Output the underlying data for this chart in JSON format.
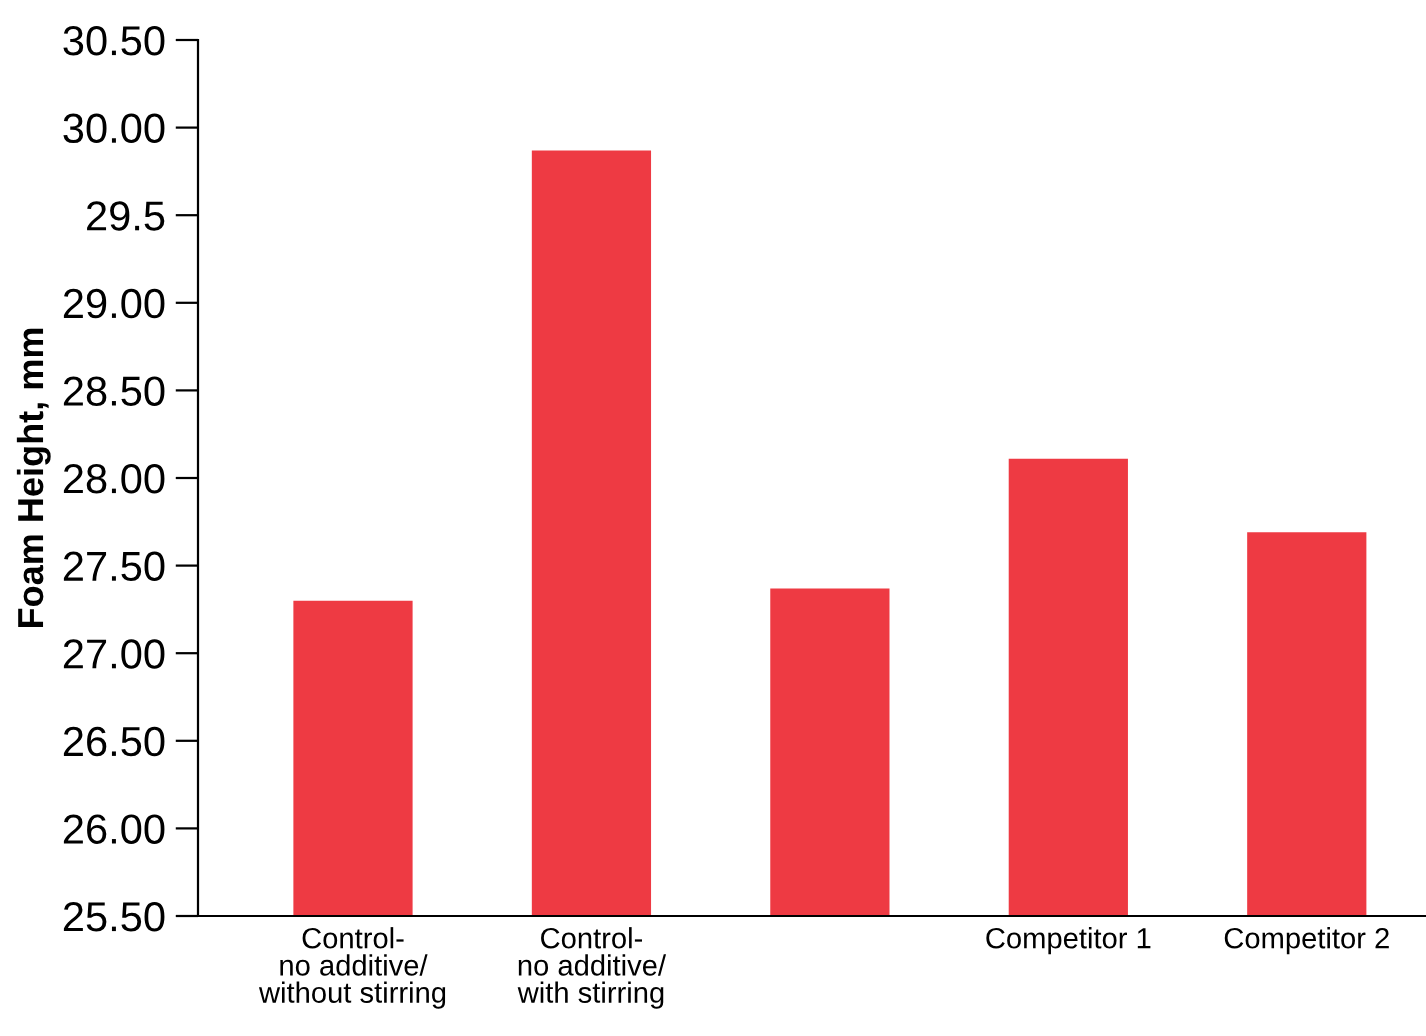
{
  "chart_data": {
    "type": "bar",
    "ylabel": "Foam Height, mm",
    "categories": [
      "Control-\nno additive/\nwithout stirring",
      "Control-\nno additive/\nwith stirring",
      null,
      "Competitor 1",
      "Competitor 2"
    ],
    "values": [
      27.3,
      29.87,
      27.37,
      28.11,
      27.69
    ],
    "color": "#ee3a43",
    "ylim": [
      25.5,
      30.5
    ],
    "yticks": [
      {
        "value": 25.5,
        "label": "25.50"
      },
      {
        "value": 26.0,
        "label": "26.00"
      },
      {
        "value": 26.5,
        "label": "26.50"
      },
      {
        "value": 27.0,
        "label": "27.00"
      },
      {
        "value": 27.5,
        "label": "27.50"
      },
      {
        "value": 28.0,
        "label": "28.00"
      },
      {
        "value": 28.5,
        "label": "28.50"
      },
      {
        "value": 29.0,
        "label": "29.00"
      },
      {
        "value": 29.5,
        "label": "29.5"
      },
      {
        "value": 30.0,
        "label": "30.00"
      },
      {
        "value": 30.5,
        "label": "30.50"
      }
    ],
    "grid": false
  }
}
